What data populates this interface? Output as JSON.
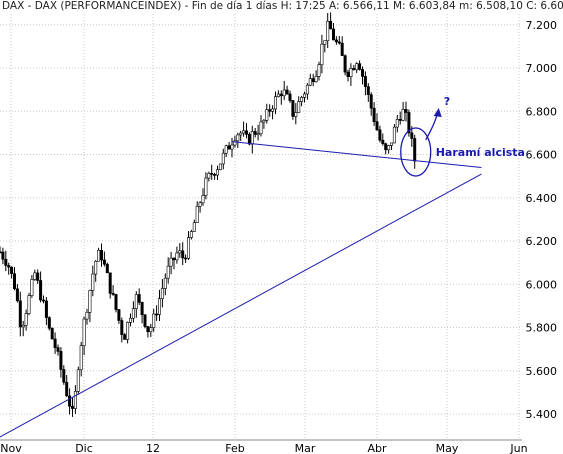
{
  "header": {
    "text": "DAX - DAX (PERFORMANCEINDEX) - Fin de día 1 días H: 17:25  A: 6.566,11  M: 6.603,84  m: 6.508,10  C: 6.60"
  },
  "chart_data": {
    "type": "candlestick",
    "y_ticks": [
      "5.400",
      "5.600",
      "5.800",
      "6.000",
      "6.200",
      "6.400",
      "6.600",
      "6.800",
      "7.000",
      "7.200"
    ],
    "y_tick_values": [
      5400,
      5600,
      5800,
      6000,
      6200,
      6400,
      6600,
      6800,
      7000,
      7200
    ],
    "x_ticks": [
      "Nov",
      "Dic",
      "12",
      "Feb",
      "Mar",
      "Abr",
      "May",
      "Jun"
    ],
    "ylim": [
      5280,
      7250
    ],
    "grid": true,
    "close_path": [
      [
        0,
        6150
      ],
      [
        4,
        6100
      ],
      [
        8,
        5980
      ],
      [
        11,
        5800
      ],
      [
        14,
        5900
      ],
      [
        18,
        6050
      ],
      [
        22,
        5920
      ],
      [
        25,
        5800
      ],
      [
        29,
        5700
      ],
      [
        33,
        5550
      ],
      [
        36,
        5450
      ],
      [
        38,
        5380
      ],
      [
        40,
        5600
      ],
      [
        43,
        5800
      ],
      [
        46,
        5950
      ],
      [
        49,
        6100
      ],
      [
        52,
        6150
      ],
      [
        55,
        6050
      ],
      [
        58,
        5950
      ],
      [
        61,
        5850
      ],
      [
        64,
        5750
      ],
      [
        67,
        5850
      ],
      [
        70,
        5950
      ],
      [
        73,
        5880
      ],
      [
        77,
        5780
      ],
      [
        80,
        5850
      ],
      [
        83,
        5950
      ],
      [
        86,
        6050
      ],
      [
        89,
        6100
      ],
      [
        92,
        6150
      ],
      [
        95,
        6120
      ],
      [
        98,
        6200
      ],
      [
        101,
        6300
      ],
      [
        104,
        6400
      ],
      [
        107,
        6480
      ],
      [
        110,
        6520
      ],
      [
        113,
        6550
      ],
      [
        116,
        6600
      ],
      [
        119,
        6650
      ],
      [
        122,
        6700
      ],
      [
        125,
        6700
      ],
      [
        128,
        6660
      ],
      [
        131,
        6700
      ],
      [
        134,
        6720
      ],
      [
        137,
        6760
      ],
      [
        140,
        6820
      ],
      [
        143,
        6860
      ],
      [
        146,
        6900
      ],
      [
        149,
        6850
      ],
      [
        152,
        6780
      ],
      [
        155,
        6850
      ],
      [
        158,
        6900
      ],
      [
        161,
        6950
      ],
      [
        164,
        7000
      ],
      [
        167,
        7120
      ],
      [
        170,
        7200
      ],
      [
        173,
        7130
      ],
      [
        176,
        7080
      ],
      [
        179,
        6980
      ],
      [
        182,
        7000
      ],
      [
        185,
        7050
      ],
      [
        188,
        6950
      ],
      [
        191,
        6850
      ],
      [
        194,
        6750
      ],
      [
        197,
        6650
      ],
      [
        200,
        6600
      ],
      [
        203,
        6680
      ],
      [
        206,
        6780
      ],
      [
        209,
        6800
      ],
      [
        212,
        6700
      ],
      [
        215,
        6550
      ]
    ],
    "x_range": [
      0,
      270
    ],
    "support_line": {
      "from": [
        -7,
        5260
      ],
      "to": [
        249,
        6510
      ]
    },
    "neck_line": {
      "from": [
        120,
        6660
      ],
      "to": [
        249,
        6540
      ]
    },
    "harami": {
      "x": 214,
      "y": 6575
    },
    "annotations": {
      "pattern_label": "Haramí alcista",
      "question": "?"
    }
  }
}
